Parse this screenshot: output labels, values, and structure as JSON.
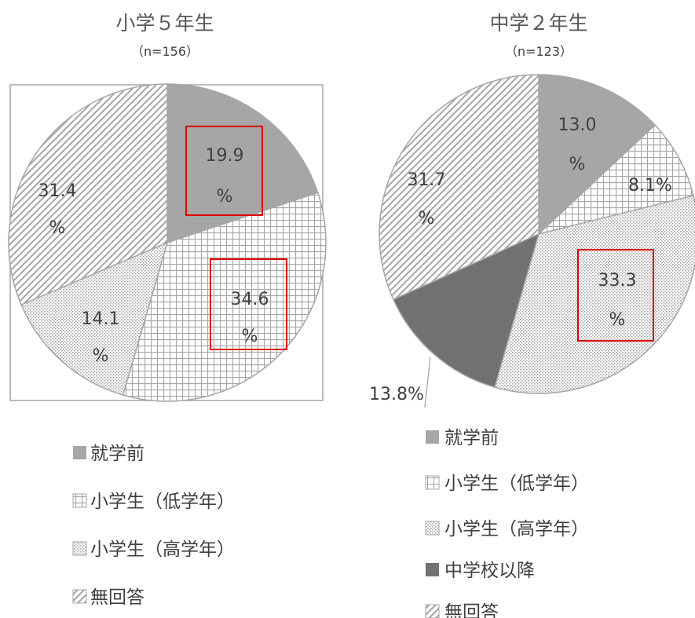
{
  "chart_data": [
    {
      "type": "pie",
      "title": "小学５年生",
      "subtitle": "（n=156）",
      "labels": [
        "就学前",
        "小学生（低学年）",
        "小学生（高学年）",
        "無回答"
      ],
      "values": [
        19.9,
        34.6,
        14.1,
        31.4
      ],
      "value_labels": [
        [
          "19.9",
          "%"
        ],
        [
          "34.6",
          "%"
        ],
        [
          "14.1",
          "%"
        ],
        [
          "31.4",
          "%"
        ]
      ],
      "highlighted": [
        "就学前",
        "小学生（低学年）"
      ],
      "fill_patterns": [
        "solid-gray",
        "grid",
        "dots",
        "diagonal-stripes"
      ],
      "legend_position": "bottom"
    },
    {
      "type": "pie",
      "title": "中学２年生",
      "subtitle": "（n=123）",
      "labels": [
        "就学前",
        "小学生（低学年）",
        "小学生（高学年）",
        "中学校以降",
        "無回答"
      ],
      "values": [
        13.0,
        8.1,
        33.3,
        13.8,
        31.7
      ],
      "value_labels": [
        [
          "13.0",
          "%"
        ],
        [
          "8.1%"
        ],
        [
          "33.3",
          "%"
        ],
        [
          "13.8%"
        ],
        [
          "31.7",
          "%"
        ]
      ],
      "highlighted": [
        "小学生（高学年）"
      ],
      "fill_patterns": [
        "solid-gray",
        "grid",
        "dots",
        "solid-dark",
        "diagonal-stripes"
      ],
      "legend_position": "bottom"
    }
  ],
  "colors": {
    "solid_gray": "#a6a6a6",
    "dark_gray": "#737070",
    "pattern_line": "#a6a6a6",
    "slice_border": "#a6a6a6",
    "highlight_box": "#e00000",
    "text": "#404040",
    "frame": "#a6a6a6"
  }
}
